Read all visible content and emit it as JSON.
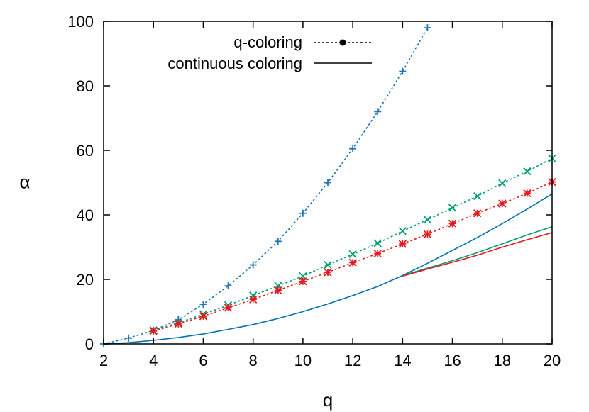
{
  "chart_data": {
    "type": "line",
    "xlabel": "q",
    "ylabel": "α",
    "xlim": [
      2,
      20
    ],
    "ylim": [
      0,
      100
    ],
    "xticks": [
      2,
      4,
      6,
      8,
      10,
      12,
      14,
      16,
      18,
      20
    ],
    "yticks": [
      0,
      20,
      40,
      60,
      80,
      100
    ],
    "grid": false,
    "legend_position": "top-center",
    "legend": [
      {
        "label": "q-coloring",
        "style": "dotted-with-marker"
      },
      {
        "label": "continuous coloring",
        "style": "solid"
      }
    ],
    "series": [
      {
        "kind": "q-coloring",
        "color": "#1f77b4",
        "marker": "plus",
        "x": [
          2,
          3,
          4,
          5,
          6,
          7,
          8,
          9,
          10,
          11,
          12,
          13,
          14,
          15
        ],
        "y": [
          0,
          1.8,
          4.2,
          7.5,
          12.3,
          18.0,
          24.5,
          31.8,
          40.5,
          50.0,
          60.5,
          72.0,
          84.5,
          98.0
        ]
      },
      {
        "kind": "q-coloring",
        "color": "#009e73",
        "marker": "x",
        "x": [
          4,
          5,
          6,
          7,
          8,
          9,
          10,
          11,
          12,
          13,
          14,
          15,
          16,
          17,
          18,
          19,
          20
        ],
        "y": [
          4.2,
          6.5,
          9.2,
          12.0,
          15.0,
          18.0,
          21.0,
          24.5,
          27.8,
          31.2,
          35.0,
          38.5,
          42.2,
          45.8,
          49.8,
          53.5,
          57.5
        ]
      },
      {
        "kind": "q-coloring",
        "color": "#e41a1c",
        "marker": "asterisk",
        "x": [
          4,
          5,
          6,
          7,
          8,
          9,
          10,
          11,
          12,
          13,
          14,
          15,
          16,
          17,
          18,
          19,
          20
        ],
        "y": [
          4.0,
          6.2,
          8.6,
          11.2,
          13.8,
          16.6,
          19.4,
          22.2,
          25.2,
          28.0,
          31.0,
          34.0,
          37.3,
          40.5,
          43.5,
          46.7,
          50.2
        ]
      },
      {
        "kind": "continuous coloring",
        "color": "#0072b2",
        "x": [
          2,
          3,
          4,
          5,
          6,
          7,
          8,
          9,
          10,
          11,
          12,
          13,
          14,
          15,
          16,
          17,
          18,
          19,
          20
        ],
        "y": [
          0,
          0.4,
          1.1,
          2.0,
          3.1,
          4.5,
          6.0,
          7.9,
          10.0,
          12.4,
          15.0,
          17.8,
          21.2,
          25.0,
          29.0,
          33.0,
          37.3,
          41.8,
          46.5
        ]
      },
      {
        "kind": "continuous coloring",
        "color": "#009e73",
        "x": [
          14,
          15,
          16,
          17,
          18,
          19,
          20
        ],
        "y": [
          21.2,
          23.5,
          25.8,
          28.3,
          31.0,
          33.8,
          36.3
        ]
      },
      {
        "kind": "continuous coloring",
        "color": "#e41a1c",
        "x": [
          14,
          15,
          16,
          17,
          18,
          19,
          20
        ],
        "y": [
          21.0,
          23.2,
          25.3,
          27.5,
          30.0,
          32.3,
          34.5
        ]
      }
    ]
  }
}
